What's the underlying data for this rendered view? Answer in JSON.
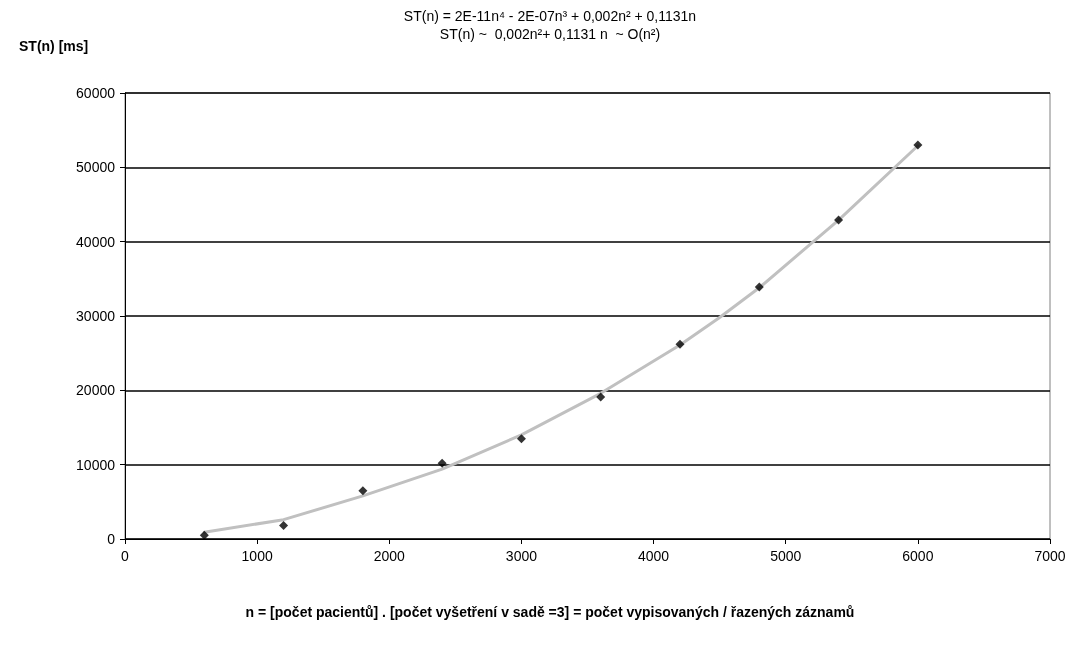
{
  "chart_data": {
    "type": "scatter",
    "title": "ST(n) = 2E-11n⁴ - 2E-07n³ + 0,002n² + 0,1131n",
    "subtitle": "ST(n) ~  0,002n²+ 0,1131 n  ~ O(n²)",
    "xlabel": "n = [počet pacientů] . [počet vyšetření v sadě =3] = počet vypisovaných / řazených záznamů",
    "ylabel": "ST(n) [ms]",
    "series": [
      {
        "type": "line",
        "color": "#c0c0c0",
        "marker": "none",
        "line_style": "solid",
        "x": [
          600,
          1200,
          1800,
          2400,
          3000,
          3600,
          4200,
          4500,
          4800,
          5400,
          6000
        ],
        "values": [
          900,
          2600,
          5800,
          9400,
          14000,
          19600,
          26100,
          29800,
          33800,
          42900,
          52900
        ]
      },
      {
        "color": "#000000",
        "marker": "diamond",
        "x": [
          600,
          1200,
          1800,
          2400,
          3000,
          3600,
          4200,
          4800,
          5400,
          6000
        ],
        "values": [
          500,
          1800,
          6500,
          10200,
          13500,
          19100,
          26200,
          33900,
          42900,
          53000
        ]
      }
    ],
    "xlim": [
      0,
      7000
    ],
    "xticks": [
      0,
      1000,
      2000,
      3000,
      4000,
      5000,
      6000,
      7000
    ],
    "ylim": [
      0,
      60000
    ],
    "yticks": [
      0,
      10000,
      20000,
      30000,
      40000,
      50000,
      60000
    ],
    "grid": "y"
  }
}
